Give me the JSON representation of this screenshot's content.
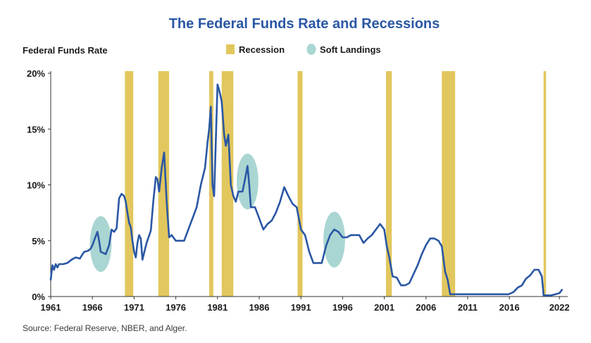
{
  "chart_data": {
    "type": "line",
    "title": "The Federal Funds Rate and Recessions",
    "ylabel": "Federal Funds Rate",
    "source": "Source: Federal Reserve, NBER, and Alger.",
    "xlim": [
      1961,
      2023
    ],
    "ylim": [
      0,
      20
    ],
    "x_ticks": [
      1961,
      1966,
      1971,
      1976,
      1981,
      1986,
      1991,
      1996,
      2001,
      2006,
      2011,
      2016,
      2022
    ],
    "y_ticks": [
      {
        "value": 0,
        "label": "0%"
      },
      {
        "value": 5,
        "label": "5%"
      },
      {
        "value": 10,
        "label": "10%"
      },
      {
        "value": 15,
        "label": "15%"
      },
      {
        "value": 20,
        "label": "20%"
      }
    ],
    "legend": {
      "recession_label": "Recession",
      "soft_landing_label": "Soft Landings",
      "recession_color": "#e2c75e",
      "soft_landing_color": "#a9d6d2"
    },
    "line_color": "#2a57a4",
    "recessions": [
      {
        "start": 1969.9,
        "end": 1970.9
      },
      {
        "start": 1973.9,
        "end": 1975.2
      },
      {
        "start": 1980.0,
        "end": 1980.5
      },
      {
        "start": 1981.5,
        "end": 1982.9
      },
      {
        "start": 1990.6,
        "end": 1991.2
      },
      {
        "start": 2001.2,
        "end": 2001.9
      },
      {
        "start": 2007.9,
        "end": 2009.5
      },
      {
        "start": 2020.1,
        "end": 2020.4
      }
    ],
    "soft_landings": [
      {
        "x": 1967.0,
        "y": 4.7,
        "rx": 1.3,
        "ry": 2.5
      },
      {
        "x": 1984.6,
        "y": 10.3,
        "rx": 1.3,
        "ry": 2.5
      },
      {
        "x": 1995.0,
        "y": 5.1,
        "rx": 1.3,
        "ry": 2.5
      }
    ],
    "series": [
      {
        "x": [
          1961.0,
          1961.2,
          1961.4,
          1961.6,
          1961.8,
          1962.0,
          1962.5,
          1963.0,
          1963.5,
          1964.0,
          1964.5,
          1965.0,
          1965.5,
          1965.8,
          1966.0,
          1966.3,
          1966.6,
          1966.8,
          1967.0,
          1967.3,
          1967.6,
          1968.0,
          1968.3,
          1968.6,
          1968.9,
          1969.2,
          1969.5,
          1969.8,
          1970.0,
          1970.2,
          1970.4,
          1970.6,
          1970.8,
          1971.0,
          1971.2,
          1971.4,
          1971.6,
          1971.8,
          1972.0,
          1972.5,
          1973.0,
          1973.3,
          1973.6,
          1973.8,
          1974.0,
          1974.3,
          1974.6,
          1974.9,
          1975.2,
          1975.5,
          1975.8,
          1976.0,
          1976.5,
          1977.0,
          1977.5,
          1978.0,
          1978.5,
          1979.0,
          1979.5,
          1979.8,
          1980.0,
          1980.2,
          1980.4,
          1980.6,
          1980.8,
          1981.0,
          1981.2,
          1981.5,
          1981.8,
          1982.0,
          1982.3,
          1982.6,
          1982.9,
          1983.2,
          1983.5,
          1984.0,
          1984.3,
          1984.6,
          1984.8,
          1985.0,
          1985.5,
          1986.0,
          1986.5,
          1987.0,
          1987.5,
          1988.0,
          1988.5,
          1989.0,
          1989.5,
          1990.0,
          1990.5,
          1991.0,
          1991.5,
          1992.0,
          1992.5,
          1993.0,
          1993.5,
          1994.0,
          1994.5,
          1995.0,
          1995.5,
          1996.0,
          1996.5,
          1997.0,
          1998.0,
          1998.5,
          1999.0,
          1999.5,
          2000.0,
          2000.5,
          2001.0,
          2001.3,
          2001.6,
          2002.0,
          2002.5,
          2003.0,
          2003.5,
          2004.0,
          2004.5,
          2005.0,
          2005.5,
          2006.0,
          2006.5,
          2007.0,
          2007.5,
          2007.9,
          2008.3,
          2008.6,
          2008.9,
          2009.0,
          2010.0,
          2012.0,
          2014.0,
          2015.9,
          2016.5,
          2017.0,
          2017.5,
          2018.0,
          2018.5,
          2019.0,
          2019.5,
          2019.9,
          2020.1,
          2020.3,
          2021.0,
          2022.0,
          2022.3
        ],
        "values": [
          1.5,
          2.8,
          2.4,
          2.9,
          2.6,
          2.9,
          2.9,
          3.0,
          3.3,
          3.5,
          3.4,
          4.0,
          4.1,
          4.3,
          4.6,
          5.2,
          5.8,
          5.0,
          4.0,
          3.9,
          3.8,
          4.6,
          6.0,
          5.8,
          6.1,
          8.8,
          9.2,
          9.0,
          8.5,
          7.5,
          6.6,
          6.2,
          5.0,
          4.0,
          3.5,
          4.8,
          5.5,
          5.2,
          3.3,
          4.8,
          5.9,
          8.5,
          10.7,
          10.5,
          9.4,
          11.5,
          12.9,
          8.5,
          5.3,
          5.5,
          5.2,
          5.0,
          5.0,
          5.0,
          6.0,
          7.0,
          8.0,
          10.0,
          11.5,
          13.8,
          15.0,
          17.0,
          10.0,
          9.0,
          14.0,
          19.0,
          18.5,
          17.5,
          14.5,
          13.5,
          14.5,
          10.0,
          9.0,
          8.5,
          9.4,
          9.4,
          10.5,
          11.7,
          10.0,
          8.0,
          8.0,
          7.0,
          6.0,
          6.5,
          6.8,
          7.5,
          8.5,
          9.8,
          9.0,
          8.3,
          8.0,
          6.0,
          5.5,
          4.0,
          3.0,
          3.0,
          3.0,
          4.5,
          5.5,
          6.0,
          5.8,
          5.3,
          5.3,
          5.5,
          5.5,
          4.8,
          5.2,
          5.5,
          6.0,
          6.5,
          6.0,
          4.5,
          3.5,
          1.8,
          1.7,
          1.0,
          1.0,
          1.2,
          2.0,
          2.8,
          3.8,
          4.6,
          5.2,
          5.2,
          5.0,
          4.5,
          2.2,
          1.5,
          0.2,
          0.2,
          0.2,
          0.2,
          0.2,
          0.2,
          0.4,
          0.8,
          1.0,
          1.6,
          1.9,
          2.4,
          2.4,
          1.8,
          0.1,
          0.1,
          0.1,
          0.3,
          0.6
        ]
      }
    ]
  }
}
